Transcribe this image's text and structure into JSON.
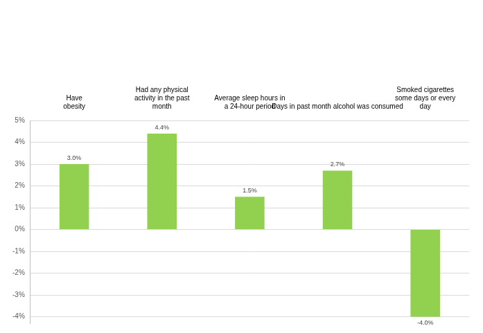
{
  "chart_data": {
    "type": "bar",
    "categories": [
      "Have\nobesity",
      "Had any physical\nactivity in the past\nmonth",
      "Average sleep hours in\na 24-hour period",
      "Days in past month alcohol was consumed",
      "Smoked cigarettes\nsome days or every\nday"
    ],
    "values": [
      3.0,
      4.4,
      1.5,
      2.7,
      -4.0
    ],
    "value_labels": [
      "3.0%",
      "4.4%",
      "1.5%",
      "2.7%",
      "-4.0%"
    ],
    "data_labels": true,
    "color": "#92d050",
    "ylim": [
      -4.3,
      5
    ],
    "yticks": [
      {
        "value": -4,
        "label": "-4%"
      },
      {
        "value": -3,
        "label": "-3%"
      },
      {
        "value": -2,
        "label": "-2%"
      },
      {
        "value": -1,
        "label": "-1%"
      },
      {
        "value": 0,
        "label": "0%"
      },
      {
        "value": 1,
        "label": "1%"
      },
      {
        "value": 2,
        "label": "2%"
      },
      {
        "value": 3,
        "label": "3%"
      },
      {
        "value": 4,
        "label": "4%"
      },
      {
        "value": 5,
        "label": "5%"
      }
    ],
    "grid": true
  }
}
